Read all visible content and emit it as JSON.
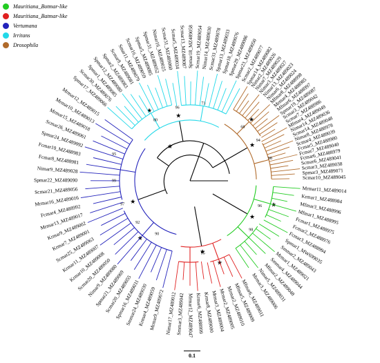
{
  "legend": [
    {
      "label": "Mauritiana_Botmar-like",
      "color": "#22cc22"
    },
    {
      "label": "Mauritiana_Batmar-like",
      "color": "#e02020"
    },
    {
      "label": "Vertumana",
      "color": "#2222bb"
    },
    {
      "label": "Irritans",
      "color": "#22d8e8"
    },
    {
      "label": "Drosophila",
      "color": "#b06a2a"
    }
  ],
  "scale_label": "0.1",
  "tree": {
    "center": "Mrmar11_MZ489014",
    "clades": [
      {
        "name": "Mauritiana_Botmar-like",
        "color": "#22cc22",
        "leaves": [
          "Mrmar11_MZ489014",
          "Krmar1_MZ488984",
          "Mfmar3_MZ488996",
          "Mfmar1_MZ488995",
          "Fcmar1_MZ488975",
          "Fcmar2_MZ488976",
          "Fcmar3_MZ488994",
          "Spmar1_MW699035",
          "Smmar2_MZ489043",
          "Mrmar1_MZ489021",
          "Smmar4_MZ489044",
          "Mfmar2_MZ489048",
          "Nimar5_MZ489031",
          "Mrmar3_MZ489006"
        ],
        "bootstraps": [
          "96",
          "98"
        ]
      },
      {
        "name": "Mauritiana_Batmar-like",
        "color": "#e02020",
        "leaves": [
          "Mfmar6_MZ489011",
          "Mfmar5_MZ489009",
          "Mrmar2_MZ489010",
          "Mrmar2_MZ489005",
          "Mrmar3_MZ489004",
          "Krmar8_MZ489000",
          "Krmar6_MZ488999",
          "Mrmar12_MZ489047",
          "Smmar3_MZ489042",
          "Nimar17_MZ489012"
        ],
        "bootstraps": [
          "95"
        ]
      },
      {
        "name": "Vertumana",
        "color": "#2222bb",
        "leaves": [
          "Mrmar9_MZ489072",
          "Krmar4_MZ489059",
          "Smmar24_MZ489030",
          "Spmar16_MZ489031",
          "Scmar20_MZ489055",
          "Spmar21_MZ489069",
          "Nimar9_MZ489080",
          "Scmar20_MZ489050",
          "Krmar10_MZ489008",
          "Krmar11_MZ489007",
          "Scmar25_MZ489063",
          "Krmar7_MZ489001",
          "Krmar9_MZ489002",
          "Mrmar13_MZ489017",
          "Fcmar4_MZ488992",
          "Mrmar16_MZ489016",
          "Scmar21_MZ489056",
          "Spmar22_MZ489090",
          "Nimar9_MZ489028",
          "Fcmar8_MZ488981",
          "Fcmar10_MZ488983",
          "Spmar24_MZ489092",
          "Scmar26_MZ489061",
          "Mrmar15_MZ489018",
          "Mrmar10_MZ489013",
          "Mrmar12_MZ489015"
        ],
        "bootstraps": [
          "90",
          "92",
          "97",
          "99",
          "95"
        ]
      },
      {
        "name": "Irritans",
        "color": "#22d8e8",
        "leaves": [
          "Spmar17_MZ489066",
          "Scmar30_MZ489076",
          "Spmar1_MZ489085",
          "Spmar12_MZ489080",
          "Spmar2_MZ489083",
          "Scmar9_MZ489081",
          "Smar11_MZ489079",
          "Scmar16_MZ489059",
          "Spmar5_MZ489085",
          "Spmar31_MZ489052",
          "Nimar16_MZ489025",
          "Scmar31_MZ489060",
          "Scmar5_MZ489034",
          "Scmar13_MZ489087",
          "Spmar18_MZ489058",
          "Scmar19_MZ489054",
          "Nimar14_MZ489030",
          "Scmar33_MZ489078",
          "Spmar13_MZ489033",
          "Spmar18_MZ489076",
          "Spmar29_MZ489086",
          "Spmar23_MZ489050",
          "Scmar2_MZ489077"
        ],
        "bootstraps": [
          "80",
          "96",
          "73"
        ]
      },
      {
        "name": "Drosophila",
        "color": "#b06a2a",
        "leaves": [
          "Spmar14_MZ489082",
          "Nimar2_MZ489026",
          "Nimar7_MZ489029",
          "Nimar3_MZ489027",
          "Nimar13_MZ489023",
          "Nimar6_MZ489024",
          "Mfmar8_MZ488998",
          "Mrmar4_MZ488985",
          "Mfmar6_MZ488997",
          "Spmar19_MZ489087",
          "Scmar3_MZ489042",
          "Scmar7_MZ488986",
          "Mfmar4_MZ489049",
          "Nimar14_MZ489036",
          "Scmar14_MZ489048",
          "Nimar8_MZ488978",
          "Scmar4_MZ489039",
          "Fcmar5_MZ488980",
          "Fcmar7_MZ489040",
          "Fcmar6_MZ488979",
          "Scmar6_MZ489041",
          "Scmar3_MZ489038",
          "Spmar3_MZ489071",
          "Scmar10_MZ489045"
        ],
        "bootstraps": [
          "68",
          "94",
          "98"
        ]
      }
    ]
  }
}
